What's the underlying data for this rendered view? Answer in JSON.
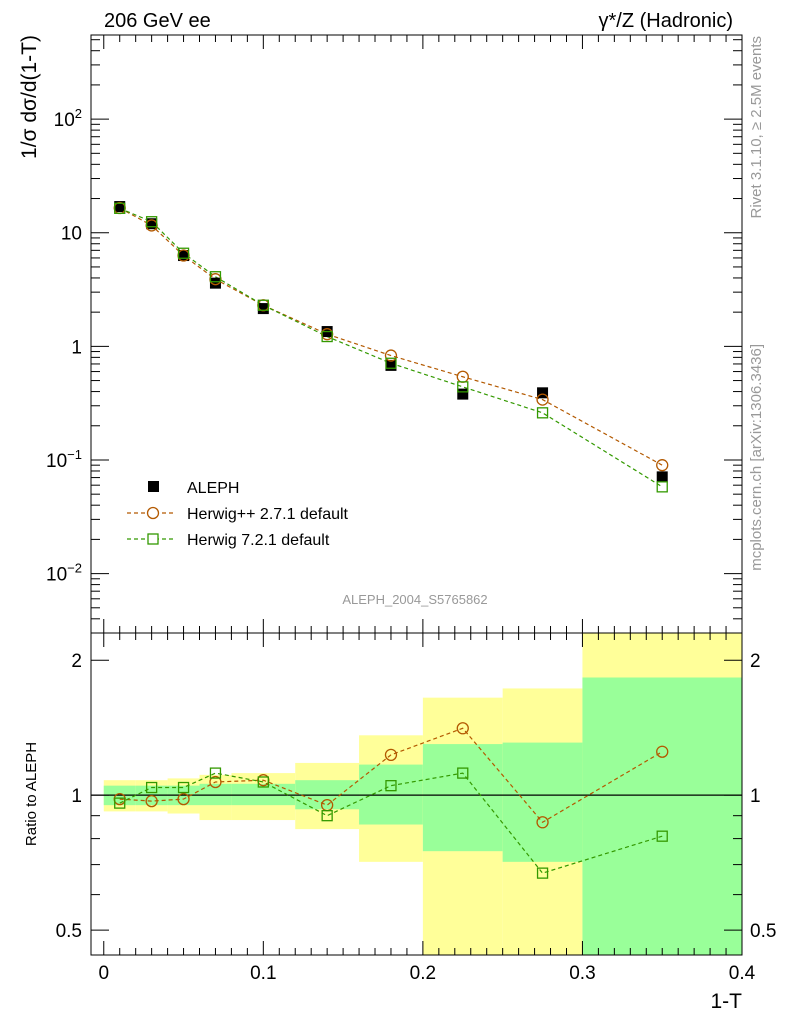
{
  "header": {
    "left_title": "206 GeV ee",
    "right_title": "γ*/Z (Hadronic)"
  },
  "side_text": {
    "rivet": "Rivet 3.1.10, ≥ 2.5M events",
    "mcplots": "mcplots.cern.ch [arXiv:1306.3436]"
  },
  "colors": {
    "data": "#000000",
    "herwigpp": "#b35900",
    "herwig7": "#339900",
    "band_inner": "#99ff99",
    "band_outer": "#ffff99"
  },
  "chart_data": [
    {
      "type": "scatter",
      "panel": "main",
      "title": "",
      "xlabel": "1-T",
      "ylabel": "1/σ  dσ/d(1-T)",
      "yscale": "log",
      "xlim": [
        -0.008,
        0.4
      ],
      "ylim": [
        0.003,
        550
      ],
      "ytick_labels": [
        "10^-2",
        "10^-1",
        "1",
        "10",
        "10^2"
      ],
      "watermark": "ALEPH_2004_S5765862",
      "legend_position": "lower-left",
      "x": [
        0.01,
        0.03,
        0.05,
        0.07,
        0.1,
        0.14,
        0.18,
        0.225,
        0.275,
        0.35
      ],
      "series": [
        {
          "name": "ALEPH",
          "marker": "filled-square",
          "values": [
            17.0,
            12.0,
            6.3,
            3.6,
            2.15,
            1.35,
            0.68,
            0.38,
            0.39,
            0.071
          ]
        },
        {
          "name": "Herwig++ 2.7.1 default",
          "marker": "open-circle",
          "line": "dashed",
          "values": [
            16.5,
            11.6,
            6.3,
            3.9,
            2.3,
            1.28,
            0.83,
            0.54,
            0.34,
            0.09
          ]
        },
        {
          "name": "Herwig 7.2.1 default",
          "marker": "open-square",
          "line": "dashed",
          "values": [
            16.4,
            12.5,
            6.6,
            4.1,
            2.3,
            1.22,
            0.71,
            0.44,
            0.26,
            0.058
          ]
        }
      ]
    },
    {
      "type": "line",
      "panel": "ratio",
      "xlabel": "1-T",
      "ylabel": "Ratio to ALEPH",
      "yscale": "log",
      "xlim": [
        -0.008,
        0.4
      ],
      "ylim": [
        0.44,
        2.3
      ],
      "x_ticks": [
        0,
        0.1,
        0.2,
        0.3,
        0.4
      ],
      "x_tick_labels": [
        "0",
        "0.1",
        "0.2",
        "0.3",
        "0.4"
      ],
      "y_tick_labels": [
        "0.5",
        "1",
        "2"
      ],
      "bins": [
        {
          "lo": 0.0,
          "hi": 0.02,
          "inner": [
            0.95,
            1.05
          ],
          "outer": [
            0.92,
            1.08
          ]
        },
        {
          "lo": 0.02,
          "hi": 0.04,
          "inner": [
            0.95,
            1.05
          ],
          "outer": [
            0.92,
            1.08
          ]
        },
        {
          "lo": 0.04,
          "hi": 0.06,
          "inner": [
            0.95,
            1.05
          ],
          "outer": [
            0.91,
            1.09
          ]
        },
        {
          "lo": 0.06,
          "hi": 0.08,
          "inner": [
            0.95,
            1.06
          ],
          "outer": [
            0.88,
            1.11
          ]
        },
        {
          "lo": 0.08,
          "hi": 0.12,
          "inner": [
            0.95,
            1.06
          ],
          "outer": [
            0.88,
            1.12
          ]
        },
        {
          "lo": 0.12,
          "hi": 0.16,
          "inner": [
            0.93,
            1.08
          ],
          "outer": [
            0.84,
            1.18
          ]
        },
        {
          "lo": 0.16,
          "hi": 0.2,
          "inner": [
            0.86,
            1.17
          ],
          "outer": [
            0.71,
            1.36
          ]
        },
        {
          "lo": 0.2,
          "hi": 0.25,
          "inner": [
            0.75,
            1.3
          ],
          "outer": [
            0.37,
            1.65
          ]
        },
        {
          "lo": 0.25,
          "hi": 0.3,
          "inner": [
            0.71,
            1.31
          ],
          "outer": [
            0.35,
            1.73
          ]
        },
        {
          "lo": 0.3,
          "hi": 0.4,
          "inner": [
            0.35,
            1.83
          ],
          "outer": [
            0.35,
            2.3
          ]
        }
      ],
      "reference_line": 1,
      "series": [
        {
          "name": "Herwig++ 2.7.1 default",
          "values": [
            0.98,
            0.97,
            0.98,
            1.07,
            1.08,
            0.95,
            1.23,
            1.41,
            0.87,
            1.25
          ]
        },
        {
          "name": "Herwig 7.2.1 default",
          "values": [
            0.96,
            1.04,
            1.04,
            1.12,
            1.07,
            0.9,
            1.05,
            1.12,
            0.67,
            0.81
          ]
        }
      ]
    }
  ]
}
